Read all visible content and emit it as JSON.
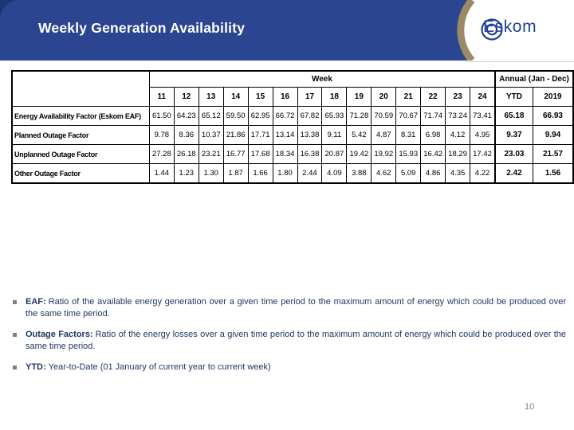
{
  "slide": {
    "title": "Weekly Generation Availability",
    "page_number": "10",
    "logo_text": "Eskom"
  },
  "colors": {
    "header_blue": "#2B4590",
    "header_corner_dark": "#1D3570",
    "arc_tan": "#9A8A68",
    "logo_blue": "#21409A",
    "body_text_navy": "#1F3864",
    "bullet_marker_gray": "#808080",
    "page_number_gray": "#7F7F7F"
  },
  "table": {
    "corner_label": "",
    "week_group_label": "Week",
    "annual_group_label": "Annual (Jan - Dec)",
    "week_columns": [
      "11",
      "12",
      "13",
      "14",
      "15",
      "16",
      "17",
      "18",
      "19",
      "20",
      "21",
      "22",
      "23",
      "24"
    ],
    "annual_columns": [
      "YTD",
      "2019"
    ],
    "rows": [
      {
        "label": "Energy Availability Factor (Eskom EAF)",
        "weekly": [
          "61.50",
          "64.23",
          "65.12",
          "59.50",
          "62.95",
          "66.72",
          "67.82",
          "65.93",
          "71.28",
          "70.59",
          "70.67",
          "71.74",
          "73.24",
          "73.41"
        ],
        "ytd": "65.18",
        "annual": "66.93"
      },
      {
        "label": "Planned Outage Factor",
        "weekly": [
          "9.78",
          "8.36",
          "10.37",
          "21.86",
          "17.71",
          "13.14",
          "13.38",
          "9.11",
          "5.42",
          "4.87",
          "8.31",
          "6.98",
          "4.12",
          "4.95"
        ],
        "ytd": "9.37",
        "annual": "9.94"
      },
      {
        "label": "Unplanned Outage Factor",
        "weekly": [
          "27.28",
          "26.18",
          "23.21",
          "16.77",
          "17.68",
          "18.34",
          "16.38",
          "20.87",
          "19.42",
          "19.92",
          "15.93",
          "16.42",
          "18.29",
          "17.42"
        ],
        "ytd": "23.03",
        "annual": "21.57"
      },
      {
        "label": "Other Outage Factor",
        "weekly": [
          "1.44",
          "1.23",
          "1.30",
          "1.87",
          "1.66",
          "1.80",
          "2.44",
          "4.09",
          "3.88",
          "4.62",
          "5.09",
          "4.86",
          "4.35",
          "4.22"
        ],
        "ytd": "2.42",
        "annual": "1.56"
      }
    ]
  },
  "chart_data": {
    "type": "table",
    "title": "Weekly Generation Availability",
    "categories": [
      "11",
      "12",
      "13",
      "14",
      "15",
      "16",
      "17",
      "18",
      "19",
      "20",
      "21",
      "22",
      "23",
      "24",
      "YTD",
      "2019"
    ],
    "series": [
      {
        "name": "Energy Availability Factor (Eskom EAF)",
        "values": [
          61.5,
          64.23,
          65.12,
          59.5,
          62.95,
          66.72,
          67.82,
          65.93,
          71.28,
          70.59,
          70.67,
          71.74,
          73.24,
          73.41,
          65.18,
          66.93
        ]
      },
      {
        "name": "Planned Outage Factor",
        "values": [
          9.78,
          8.36,
          10.37,
          21.86,
          17.71,
          13.14,
          13.38,
          9.11,
          5.42,
          4.87,
          8.31,
          6.98,
          4.12,
          4.95,
          9.37,
          9.94
        ]
      },
      {
        "name": "Unplanned Outage Factor",
        "values": [
          27.28,
          26.18,
          23.21,
          16.77,
          17.68,
          18.34,
          16.38,
          20.87,
          19.42,
          19.92,
          15.93,
          16.42,
          18.29,
          17.42,
          23.03,
          21.57
        ]
      },
      {
        "name": "Other Outage Factor",
        "values": [
          1.44,
          1.23,
          1.3,
          1.87,
          1.66,
          1.8,
          2.44,
          4.09,
          3.88,
          4.62,
          5.09,
          4.86,
          4.35,
          4.22,
          2.42,
          1.56
        ]
      }
    ]
  },
  "bullets": [
    {
      "term": "EAF:",
      "definition": "Ratio of the available energy generation over a given time period to the maximum amount of energy which could be produced over the same time period."
    },
    {
      "term": "Outage Factors:",
      "definition": "Ratio of the energy losses over a given time period to the maximum amount of energy which could be produced over the same time period."
    },
    {
      "term": "YTD:",
      "definition": "Year-to-Date (01 January of current year to current week)"
    }
  ]
}
